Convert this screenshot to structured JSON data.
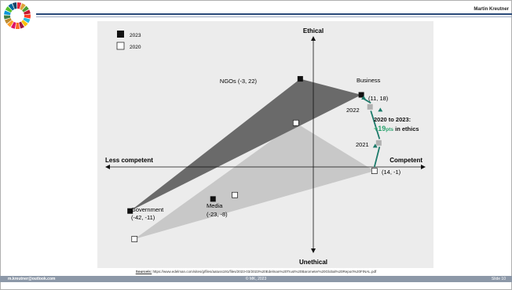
{
  "header": {
    "author": "Martin Kreutner"
  },
  "chart_data": {
    "type": "scatter",
    "axes": {
      "x_left_label": "Less competent",
      "x_right_label": "Competent",
      "y_top_label": "Ethical",
      "y_bottom_label": "Unethical"
    },
    "legend": {
      "placement": "top-left",
      "entries": [
        {
          "label": "2023",
          "marker": "filled"
        },
        {
          "label": "2020",
          "marker": "hollow"
        }
      ]
    },
    "xlim": [
      -50,
      30
    ],
    "ylim": [
      -25,
      35
    ],
    "series": [
      {
        "name": "2023",
        "points": [
          {
            "entity": "NGOs",
            "label": "NGOs (-3, 22)",
            "x": -3,
            "y": 22
          },
          {
            "entity": "Business",
            "label": "Business",
            "coord": "(11, 18)",
            "x": 11,
            "y": 18
          },
          {
            "entity": "Government",
            "label": "Government",
            "coord": "(-42, -11)",
            "x": -42,
            "y": -11
          },
          {
            "entity": "Media",
            "label": "Media",
            "coord": "(-23, -8)",
            "x": -23,
            "y": -8
          }
        ]
      },
      {
        "name": "2020",
        "points": [
          {
            "entity": "NGOs",
            "x": -4,
            "y": 11
          },
          {
            "entity": "Business",
            "coord": "(14, -1)",
            "x": 14,
            "y": -1
          },
          {
            "entity": "Government",
            "x": -41,
            "y": -18
          },
          {
            "entity": "Media",
            "x": -18,
            "y": -7
          }
        ]
      },
      {
        "name": "Business trajectory",
        "points": [
          {
            "label": "2021",
            "x": 15,
            "y": 6
          },
          {
            "label": "2022",
            "x": 13,
            "y": 15
          }
        ]
      }
    ],
    "annotations": {
      "line1": "2020 to 2023:",
      "gain": "+19",
      "unit": "pts",
      "rest": " in ethics"
    },
    "colors": {
      "triangle_2023": "#6a6a6a",
      "triangle_2020": "#c8c8c8",
      "plot_bg": "#ececec",
      "arrow": "#1c7a6a",
      "accent_text": "#2aa36e",
      "trajectory_marker": "#b0b0b0"
    }
  },
  "source": {
    "prefix": "Source/s:",
    "text": " https://www.edelman.com/sites/g/files/aatuss191/files/2023-03/2023%20Edelman%20Trust%20Barometer%20Global%20Report%20FINAL.pdf"
  },
  "footer": {
    "email": "m.kreutner@outlook.com",
    "center": "© MK, 2023",
    "slide": "Slide 10"
  }
}
